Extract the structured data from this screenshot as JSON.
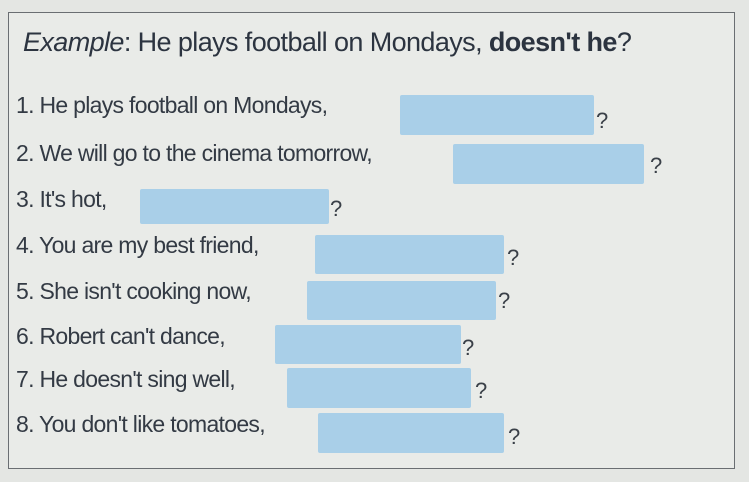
{
  "example": {
    "label": "Example",
    "sentence": ": He plays football on Mondays, ",
    "tag": "doesn't he",
    "end": "?"
  },
  "colors": {
    "blank": "#a9cfe8",
    "text": "#2e3540"
  },
  "items": [
    {
      "text": "1. He plays football on Mondays,",
      "answer": "",
      "end": "?"
    },
    {
      "text": "2. We will go to the cinema tomorrow,",
      "answer": "",
      "end": "?"
    },
    {
      "text": "3. It's hot,",
      "answer": "",
      "end": "?"
    },
    {
      "text": "4. You are my best friend,",
      "answer": "",
      "end": "?"
    },
    {
      "text": "5. She isn't cooking now,",
      "answer": "",
      "end": "?"
    },
    {
      "text": "6. Robert can't dance,",
      "answer": "",
      "end": "?"
    },
    {
      "text": "7. He doesn't sing well,",
      "answer": "",
      "end": "?"
    },
    {
      "text": "8. You don't like tomatoes,",
      "answer": "",
      "end": "?"
    }
  ]
}
